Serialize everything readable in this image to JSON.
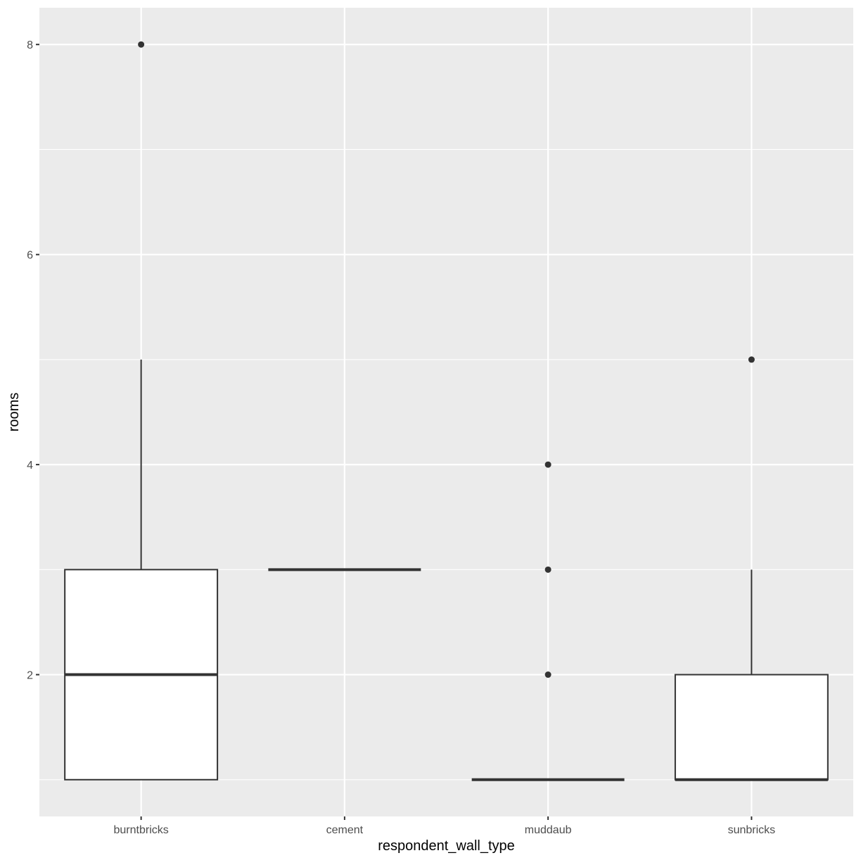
{
  "chart_data": {
    "type": "boxplot",
    "title": "",
    "xlabel": "respondent_wall_type",
    "ylabel": "rooms",
    "categories": [
      "burntbricks",
      "cement",
      "muddaub",
      "sunbricks"
    ],
    "ylim": [
      0.65,
      8.35
    ],
    "yticks": [
      2,
      4,
      6,
      8
    ],
    "y_minor_gridlines": [
      1,
      3,
      5,
      7
    ],
    "grid": true,
    "legend": null,
    "boxes": [
      {
        "category": "burntbricks",
        "lower_whisker": 1,
        "q1": 1,
        "median": 2,
        "q3": 3,
        "upper_whisker": 5,
        "outliers": [
          8
        ]
      },
      {
        "category": "cement",
        "lower_whisker": 3,
        "q1": 3,
        "median": 3,
        "q3": 3,
        "upper_whisker": 3,
        "outliers": []
      },
      {
        "category": "muddaub",
        "lower_whisker": 1,
        "q1": 1,
        "median": 1,
        "q3": 1,
        "upper_whisker": 1,
        "outliers": [
          2,
          3,
          4
        ]
      },
      {
        "category": "sunbricks",
        "lower_whisker": 1,
        "q1": 1,
        "median": 1,
        "q3": 2,
        "upper_whisker": 3,
        "outliers": [
          5
        ]
      }
    ],
    "colors": {
      "panel_background": "#ebebeb",
      "grid_major": "#ffffff",
      "box_fill": "#ffffff",
      "box_line": "#333333",
      "outlier": "#333333",
      "tick_label": "#4d4d4d",
      "axis_title": "#000000"
    }
  }
}
